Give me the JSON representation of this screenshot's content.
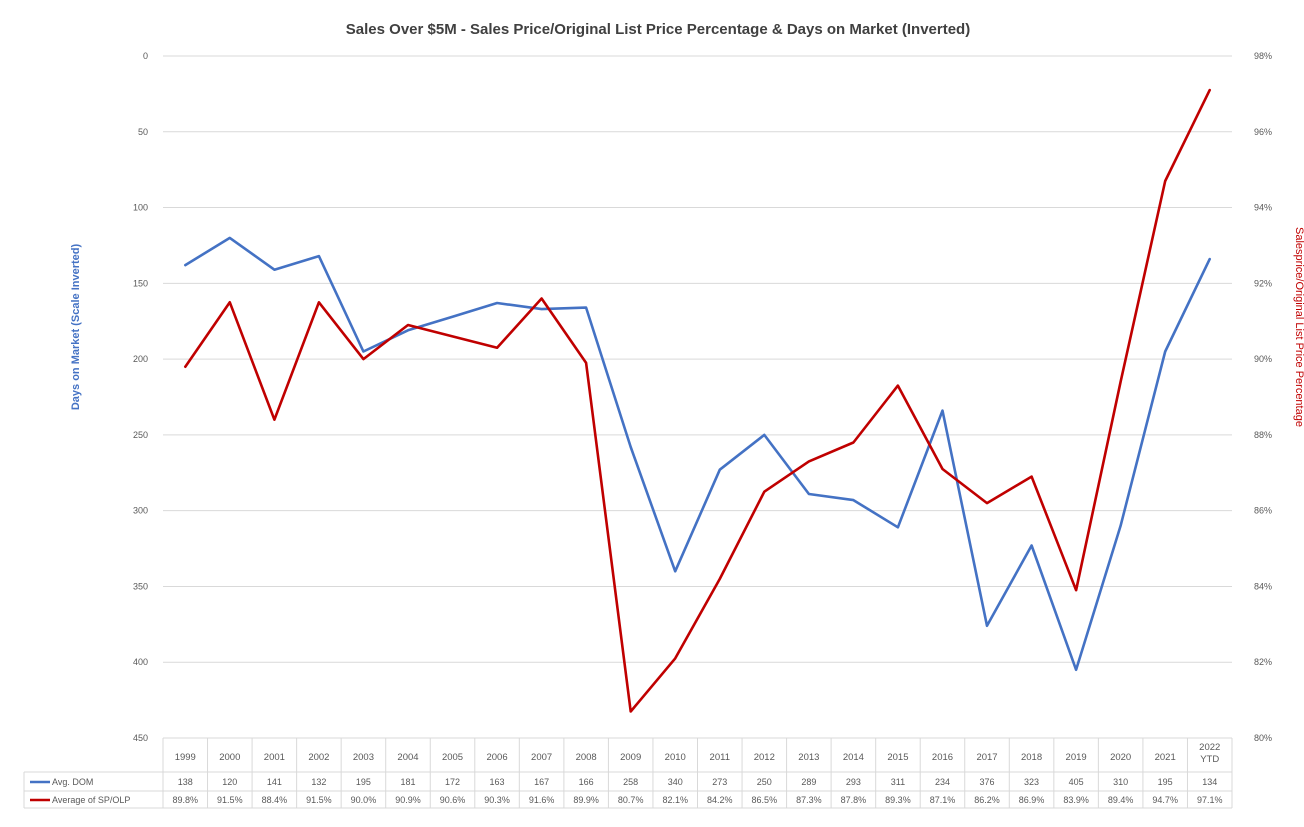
{
  "chart_data": {
    "type": "line",
    "title": "Sales  Over $5M - Sales Price/Original List Price Percentage & Days on Market (Inverted)",
    "categories": [
      "1999",
      "2000",
      "2001",
      "2002",
      "2003",
      "2004",
      "2005",
      "2006",
      "2007",
      "2008",
      "2009",
      "2010",
      "2011",
      "2012",
      "2013",
      "2014",
      "2015",
      "2016",
      "2017",
      "2018",
      "2019",
      "2020",
      "2021",
      "2022 YTD"
    ],
    "y_left": {
      "label": "Days on Market (Scale Inverted)",
      "ticks": [
        "0",
        "50",
        "100",
        "150",
        "200",
        "250",
        "300",
        "350",
        "400",
        "450"
      ],
      "range": [
        0,
        450
      ],
      "inverted": true
    },
    "y_right": {
      "label": "Salesprice/Original List Price Percentage",
      "ticks": [
        "98%",
        "96%",
        "94%",
        "92%",
        "90%",
        "88%",
        "86%",
        "84%",
        "82%",
        "80%"
      ],
      "range": [
        80,
        98
      ]
    },
    "series": [
      {
        "name": "Avg. DOM",
        "axis": "left",
        "color": "#4472c4",
        "values": [
          138,
          120,
          141,
          132,
          195,
          181,
          172,
          163,
          167,
          166,
          258,
          340,
          273,
          250,
          289,
          293,
          311,
          234,
          376,
          323,
          405,
          310,
          195,
          134
        ],
        "labels": [
          "138",
          "120",
          "141",
          "132",
          "195",
          "181",
          "172",
          "163",
          "167",
          "166",
          "258",
          "340",
          "273",
          "250",
          "289",
          "293",
          "311",
          "234",
          "376",
          "323",
          "405",
          "310",
          "195",
          "134"
        ]
      },
      {
        "name": "Average of SP/OLP",
        "axis": "right",
        "color": "#c00000",
        "values": [
          89.8,
          91.5,
          88.4,
          91.5,
          90.0,
          90.9,
          90.6,
          90.3,
          91.6,
          89.9,
          80.7,
          82.1,
          84.2,
          86.5,
          87.3,
          87.8,
          89.3,
          87.1,
          86.2,
          86.9,
          83.9,
          89.4,
          94.7,
          97.1
        ],
        "labels": [
          "89.8%",
          "91.5%",
          "88.4%",
          "91.5%",
          "90.0%",
          "90.9%",
          "90.6%",
          "90.3%",
          "91.6%",
          "89.9%",
          "80.7%",
          "82.1%",
          "84.2%",
          "86.5%",
          "87.3%",
          "87.8%",
          "89.3%",
          "87.1%",
          "86.2%",
          "86.9%",
          "83.9%",
          "89.4%",
          "94.7%",
          "97.1%"
        ]
      }
    ],
    "grid": true,
    "legend": "data-table-bottom"
  }
}
